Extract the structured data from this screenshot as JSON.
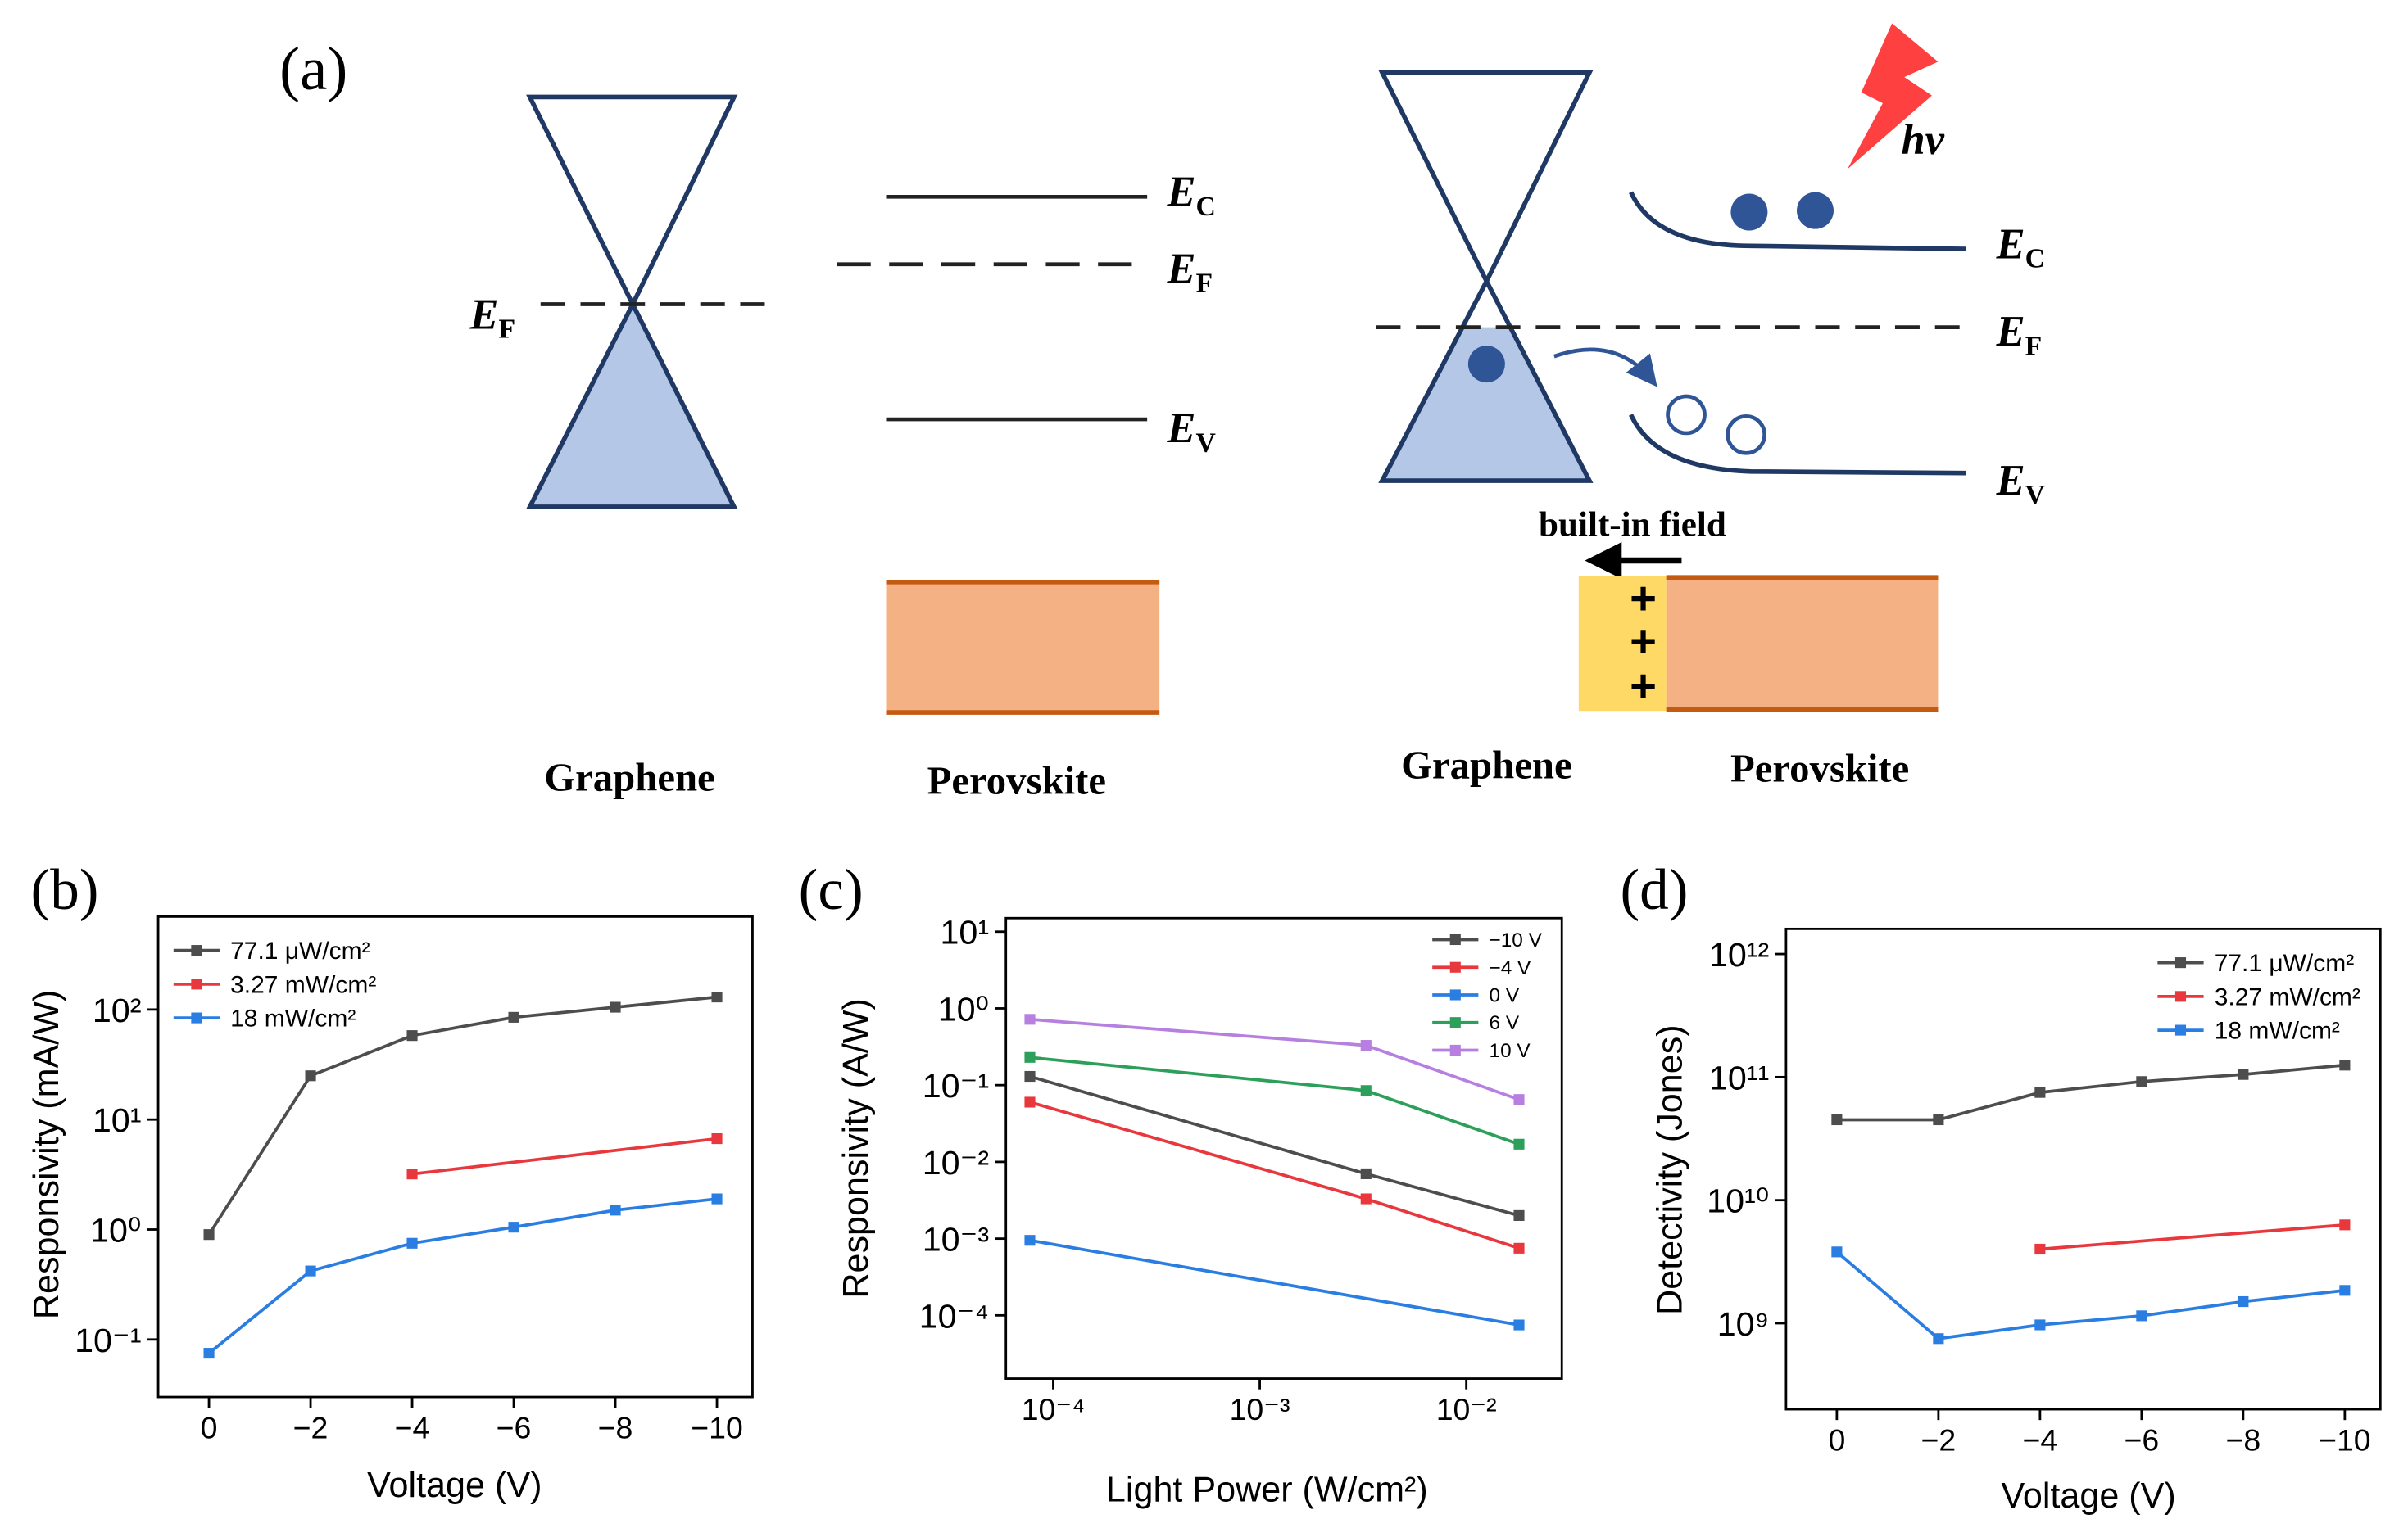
{
  "diagram": {
    "label": "(a)",
    "left": {
      "ef": {
        "e": "E",
        "sub": "F"
      },
      "levels": [
        {
          "e": "E",
          "sub": "C"
        },
        {
          "e": "E",
          "sub": "F"
        },
        {
          "e": "E",
          "sub": "V"
        }
      ],
      "materials": [
        "Graphene",
        "Perovskite"
      ]
    },
    "right": {
      "photon": "hv",
      "levels": [
        {
          "e": "E",
          "sub": "C"
        },
        {
          "e": "E",
          "sub": "F"
        },
        {
          "e": "E",
          "sub": "V"
        }
      ],
      "field": "built-in field",
      "charges": [
        "+",
        "+",
        "+"
      ],
      "materials": [
        "Graphene",
        "Perovskite"
      ]
    }
  },
  "chart_data": [
    {
      "type": "line",
      "label": "(b)",
      "xlabel": "Voltage (V)",
      "ylabel": "Responsivity (mA/W)",
      "x": [
        0,
        -2,
        -4,
        -6,
        -8,
        -10
      ],
      "xlim": [
        1,
        -10.7
      ],
      "xticks": [
        0,
        {
          "value": -2,
          "label": "−2"
        },
        {
          "value": -4,
          "label": "−4"
        },
        {
          "value": -6,
          "label": "−6"
        },
        {
          "value": -8,
          "label": "−8"
        },
        {
          "value": -10,
          "label": "−10"
        }
      ],
      "ylog": true,
      "ylim": [
        0.03,
        700
      ],
      "yticks": [
        {
          "value": 0.1,
          "label": "10⁻¹"
        },
        {
          "value": 1,
          "label": "10⁰"
        },
        {
          "value": 10,
          "label": "10¹"
        },
        {
          "value": 100,
          "label": "10²"
        }
      ],
      "legend": "upper left",
      "series": [
        {
          "name": "77.1 μW/cm²",
          "color": "#4d4d4d",
          "values": [
            0.9,
            25,
            58,
            85,
            105,
            130
          ]
        },
        {
          "name": "3.27 mW/cm²",
          "color": "#e8383d",
          "x": [
            -4,
            -10
          ],
          "values": [
            3.2,
            6.7
          ]
        },
        {
          "name": "18 mW/cm²",
          "color": "#2a7de1",
          "values": [
            0.075,
            0.42,
            0.75,
            1.05,
            1.5,
            1.9
          ]
        }
      ]
    },
    {
      "type": "line",
      "label": "(c)",
      "xlabel": "Light Power (W/cm²)",
      "ylabel": "Responsivity (A/W)",
      "x": [
        7.71e-05,
        0.00327,
        0.018
      ],
      "xlog": true,
      "xlim": [
        5.9e-05,
        0.029
      ],
      "xticks": [
        {
          "value": 0.0001,
          "label": "10⁻⁴"
        },
        {
          "value": 0.001,
          "label": "10⁻³"
        },
        {
          "value": 0.01,
          "label": "10⁻²"
        }
      ],
      "ylog": true,
      "ylim": [
        1.5e-05,
        15
      ],
      "yticks": [
        {
          "value": 0.0001,
          "label": "10⁻⁴"
        },
        {
          "value": 0.001,
          "label": "10⁻³"
        },
        {
          "value": 0.01,
          "label": "10⁻²"
        },
        {
          "value": 0.1,
          "label": "10⁻¹"
        },
        {
          "value": 1,
          "label": "10⁰"
        },
        {
          "value": 10,
          "label": "10¹"
        }
      ],
      "legend": "upper right",
      "series": [
        {
          "name": "−10 V",
          "color": "#4d4d4d",
          "values": [
            0.13,
            0.007,
            0.002
          ]
        },
        {
          "name": "−4 V",
          "color": "#e8383d",
          "values": [
            0.06,
            0.0033,
            0.00075
          ]
        },
        {
          "name": "0 V",
          "color": "#2a7de1",
          "x": [
            7.71e-05,
            0.018
          ],
          "values": [
            0.00095,
            7.5e-05
          ]
        },
        {
          "name": "6 V",
          "color": "#2ca05a",
          "values": [
            0.23,
            0.085,
            0.017
          ]
        },
        {
          "name": "10 V",
          "color": "#b77fe0",
          "values": [
            0.72,
            0.33,
            0.065
          ]
        }
      ]
    },
    {
      "type": "line",
      "label": "(d)",
      "xlabel": "Voltage (V)",
      "ylabel": "Detectivity (Jones)",
      "x": [
        0,
        -2,
        -4,
        -6,
        -8,
        -10
      ],
      "xlim": [
        1,
        -10.7
      ],
      "xticks": [
        0,
        {
          "value": -2,
          "label": "−2"
        },
        {
          "value": -4,
          "label": "−4"
        },
        {
          "value": -6,
          "label": "−6"
        },
        {
          "value": -8,
          "label": "−8"
        },
        {
          "value": -10,
          "label": "−10"
        }
      ],
      "ylog": true,
      "ylim": [
        200000000,
        1600000000000
      ],
      "yticks": [
        {
          "value": 1000000000,
          "label": "10⁹"
        },
        {
          "value": 10000000000,
          "label": "10¹⁰"
        },
        {
          "value": 100000000000,
          "label": "10¹¹"
        },
        {
          "value": 1000000000000,
          "label": "10¹²"
        }
      ],
      "legend": "upper right",
      "series": [
        {
          "name": "77.1 μW/cm²",
          "color": "#4d4d4d",
          "values": [
            45000000000,
            45000000000,
            75000000000,
            92000000000,
            105000000000,
            125000000000
          ]
        },
        {
          "name": "3.27 mW/cm²",
          "color": "#e8383d",
          "x": [
            -4,
            -10
          ],
          "values": [
            4000000000,
            6300000000
          ]
        },
        {
          "name": "18 mW/cm²",
          "color": "#2a7de1",
          "values": [
            3800000000,
            750000000,
            970000000,
            1150000000,
            1500000000,
            1850000000
          ]
        }
      ]
    }
  ]
}
